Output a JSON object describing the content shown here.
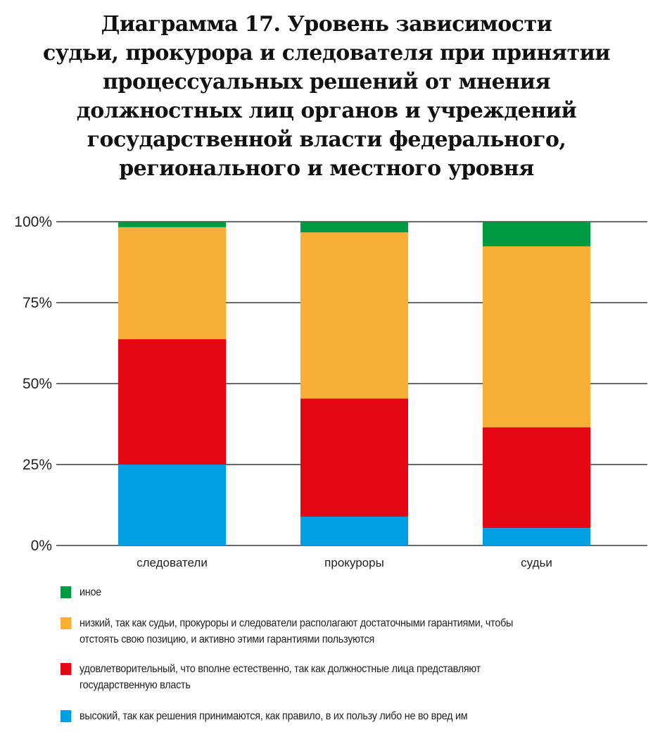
{
  "title_lines": [
    "Диаграмма 17. Уровень зависимости",
    "судьи, прокурора и следователя при принятии",
    "процессуальных решений от мнения",
    "должностных лиц органов и учреждений",
    "государственной власти федерального,",
    "регионального и местного уровня"
  ],
  "chart_data": {
    "type": "bar",
    "stacked": true,
    "title": "Диаграмма 17. Уровень зависимости судьи, прокурора и следователя при принятии процессуальных решений от мнения должностных лиц органов и учреждений государственной власти федерального, регионального и местного уровня",
    "categories": [
      "следователи",
      "прокуроры",
      "судьи"
    ],
    "ylim": [
      0,
      100
    ],
    "yticks": [
      "0%",
      "25%",
      "50%",
      "75%",
      "100%"
    ],
    "series": [
      {
        "name": "высокий, так как решения принимаются, как правило, в их пользу либо не во вред им",
        "color": "#009fe3",
        "values": [
          25.0,
          8.9,
          5.4
        ]
      },
      {
        "name": "удовлетворительный, что вполне естественно, так как должностные лица представляют государственную власть",
        "color": "#e30613",
        "values": [
          38.7,
          36.5,
          31.1
        ]
      },
      {
        "name": "низкий, так как судьи, прокуроры и следователи располагают достаточными гарантиями, чтобы отстоять свою позицию, и активно этими гарантиями пользуются",
        "color": "#f7b035",
        "values": [
          34.6,
          51.3,
          55.9
        ]
      },
      {
        "name": "иное",
        "color": "#009a44",
        "values": [
          1.7,
          3.3,
          7.6
        ]
      }
    ],
    "legend_position": "bottom"
  },
  "legend": [
    {
      "lines": [
        "иное"
      ],
      "color": "#009a44"
    },
    {
      "lines": [
        "низкий, так как судьи, прокуроры и следователи располагают достаточными гарантиями, чтобы",
        "отстоять свою позицию, и активно этими гарантиями пользуются"
      ],
      "color": "#f7b035"
    },
    {
      "lines": [
        "удовлетворительный, что вполне естественно, так как должностные лица представляют",
        "государственную власть"
      ],
      "color": "#e30613"
    },
    {
      "lines": [
        "высокий, так как решения принимаются, как правило, в их пользу либо не во вред им"
      ],
      "color": "#009fe3"
    }
  ]
}
